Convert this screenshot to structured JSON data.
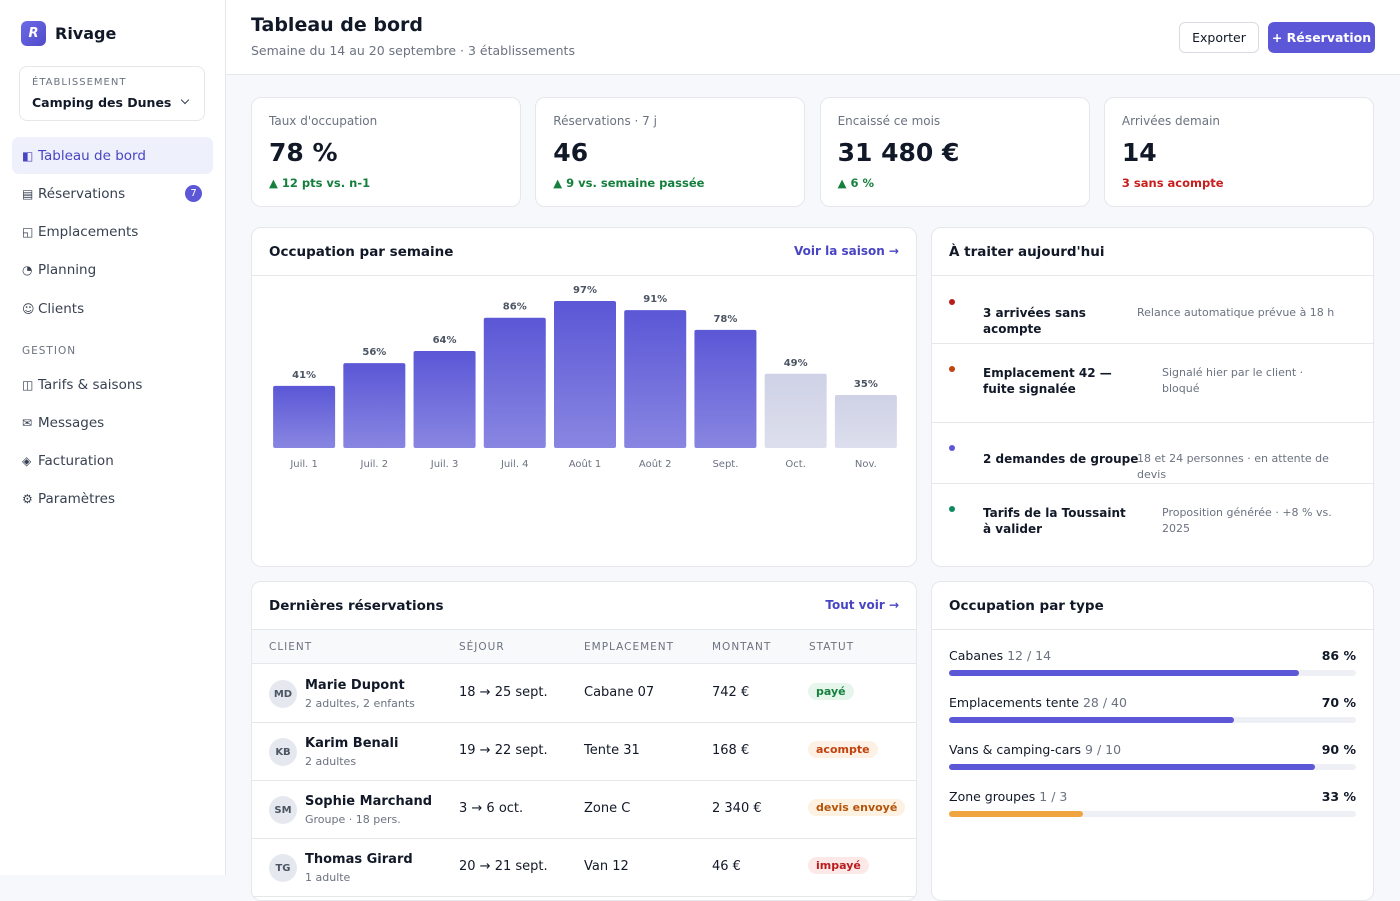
{
  "brand": {
    "logo": "R",
    "name": "Rivage"
  },
  "establishment": {
    "label": "ÉTABLISSEMENT",
    "value": "Camping des Dunes"
  },
  "nav": [
    {
      "icon": "◧",
      "label": "Tableau de bord",
      "active": true
    },
    {
      "icon": "▤",
      "label": "Réservations",
      "badge": "7"
    },
    {
      "icon": "◱",
      "label": "Emplacements"
    },
    {
      "icon": "◔",
      "label": "Planning"
    },
    {
      "icon": "☺",
      "label": "Clients"
    }
  ],
  "nav_section": "GESTION",
  "nav_gestion": [
    {
      "icon": "◫",
      "label": "Tarifs & saisons"
    },
    {
      "icon": "✉",
      "label": "Messages"
    },
    {
      "icon": "◈",
      "label": "Facturation"
    },
    {
      "icon": "⚙",
      "label": "Paramètres"
    }
  ],
  "header": {
    "title": "Tableau de bord",
    "subtitle": "Semaine du 14 au 20 septembre · 3 établissements",
    "export": "Exporter",
    "new": "+ Réservation"
  },
  "kpis": [
    {
      "label": "Taux d'occupation",
      "value": "78 %",
      "delta": "▲ 12 pts vs. n-1",
      "tone": "up"
    },
    {
      "label": "Réservations · 7 j",
      "value": "46",
      "delta": "▲ 9 vs. semaine passée",
      "tone": "up"
    },
    {
      "label": "Encaissé ce mois",
      "value": "31 480 €",
      "delta": "▲ 6 %",
      "tone": "up"
    },
    {
      "label": "Arrivées demain",
      "value": "14",
      "delta": "3 sans acompte",
      "tone": "down"
    }
  ],
  "weekly_link": "Voir la saison →",
  "chart_data": {
    "type": "bar",
    "title": "Occupation par semaine",
    "categories": [
      "Juil. 1",
      "Juil. 2",
      "Juil. 3",
      "Juil. 4",
      "Août 1",
      "Août 2",
      "Sept.",
      "Oct.",
      "Nov."
    ],
    "values": [
      41,
      56,
      64,
      86,
      97,
      91,
      78,
      49,
      35
    ],
    "value_labels": [
      "41%",
      "56%",
      "64%",
      "86%",
      "97%",
      "91%",
      "78%",
      "49%",
      "35%"
    ],
    "colors": [
      "#5b57d6",
      "#5b57d6",
      "#5b57d6",
      "#5b57d6",
      "#5b57d6",
      "#5b57d6",
      "#5b57d6",
      "#cfd2e6",
      "#cfd2e6"
    ],
    "ylim": [
      0,
      100
    ]
  },
  "tasks": {
    "title": "À traiter aujourd'hui",
    "items": [
      {
        "title": "3 arrivées sans acompte",
        "note": "Relance automatique prévue à 18 h",
        "color": "#b91c1c"
      },
      {
        "title": "Emplacement 42 — fuite signalée",
        "note": "Signalé hier par le client · bloqué",
        "color": "#c2410c"
      },
      {
        "title": "2 demandes de groupe",
        "note": "18 et 24 personnes · en attente de devis",
        "color": "#5b57d6"
      },
      {
        "title": "Tarifs de la Toussaint à valider",
        "note": "Proposition générée · +8 % vs. 2025",
        "color": "#0f8a5f"
      }
    ]
  },
  "bookings": {
    "title": "Dernières réservations",
    "link": "Tout voir →",
    "columns": [
      "CLIENT",
      "SÉJOUR",
      "EMPLACEMENT",
      "MONTANT",
      "STATUT"
    ],
    "rows": [
      {
        "initials": "MD",
        "name": "Marie Dupont",
        "party": "2 adultes, 2 enfants",
        "stay": "18 → 25 sept.",
        "site": "Cabane 07",
        "amount": "742 €",
        "status": "payé",
        "status_color": "#15803d",
        "status_bg": "#e6f6ec"
      },
      {
        "initials": "KB",
        "name": "Karim Benali",
        "party": "2 adultes",
        "stay": "19 → 22 sept.",
        "site": "Tente 31",
        "amount": "168 €",
        "status": "acompte",
        "status_color": "#c2410c",
        "status_bg": "#fdf0e4"
      },
      {
        "initials": "SM",
        "name": "Sophie Marchand",
        "party": "Groupe · 18 pers.",
        "stay": "3 → 6 oct.",
        "site": "Zone C",
        "amount": "2 340 €",
        "status": "devis envoyé",
        "status_color": "#b45309",
        "status_bg": "#fdf2e2"
      },
      {
        "initials": "TG",
        "name": "Thomas Girard",
        "party": "1 adulte",
        "stay": "20 → 21 sept.",
        "site": "Van 12",
        "amount": "46 €",
        "status": "impayé",
        "status_color": "#b91c1c",
        "status_bg": "#fde8e8"
      }
    ]
  },
  "types": {
    "title": "Occupation par type",
    "xlim": [
      0,
      100
    ],
    "items": [
      {
        "name": "Cabanes",
        "count": "12 / 14",
        "value": 86,
        "label": "86 %",
        "color": "#5b57d6"
      },
      {
        "name": "Emplacements tente",
        "count": "28 / 40",
        "value": 70,
        "label": "70 %",
        "color": "#5b57d6"
      },
      {
        "name": "Vans & camping-cars",
        "count": "9 / 10",
        "value": 90,
        "label": "90 %",
        "color": "#5b57d6"
      },
      {
        "name": "Zone groupes",
        "count": "1 / 3",
        "value": 33,
        "label": "33 %",
        "color": "#f0a540"
      }
    ]
  }
}
